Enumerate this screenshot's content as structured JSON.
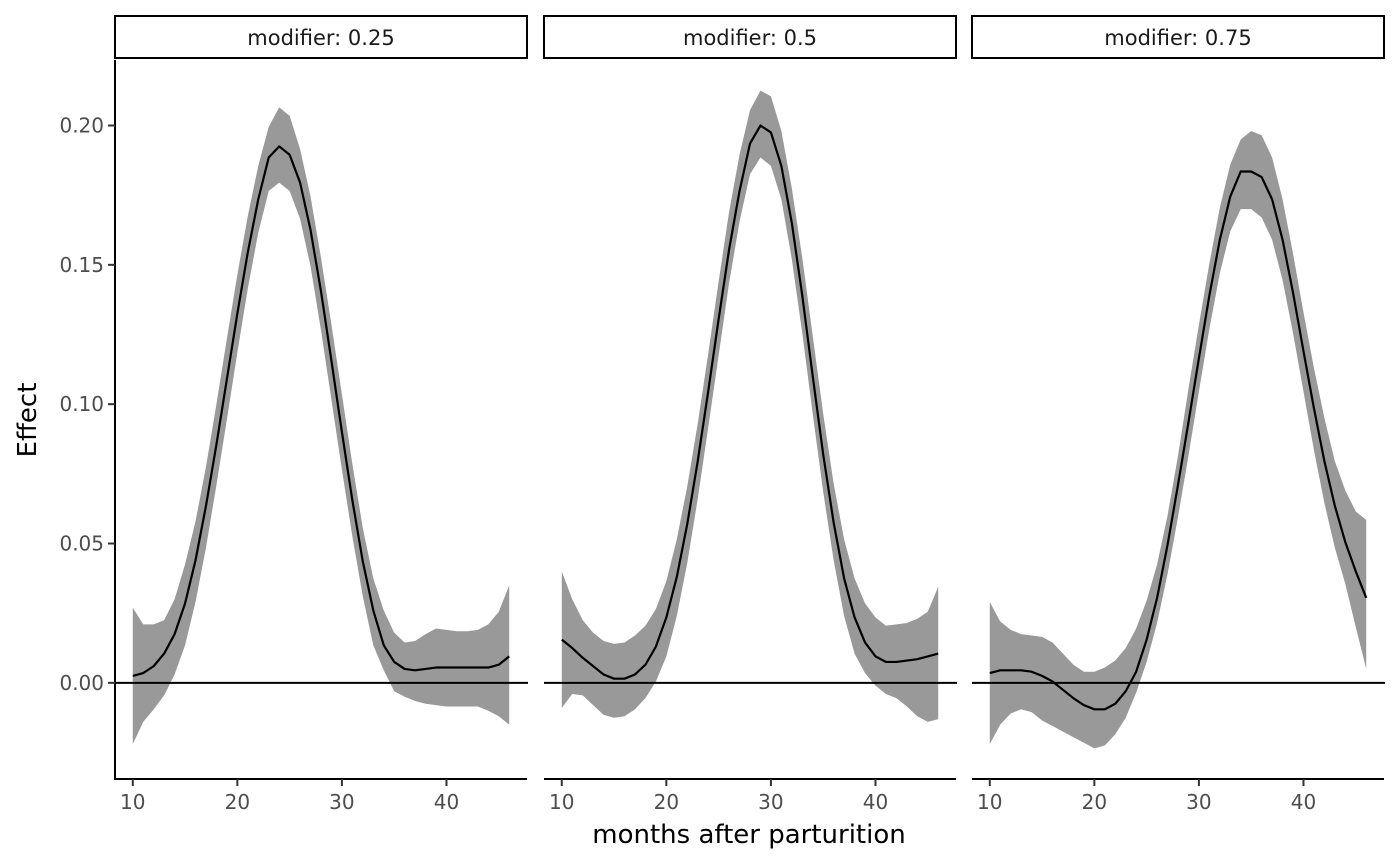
{
  "chart_data": {
    "type": "line",
    "xlabel": "months after parturition",
    "ylabel": "Effect",
    "xlim": [
      8.3,
      47.7
    ],
    "ylim": [
      -0.0345,
      0.2235
    ],
    "x_ticks": [
      10,
      20,
      30,
      40
    ],
    "y_ticks": [
      0.0,
      0.05,
      0.1,
      0.15,
      0.2
    ],
    "y_tick_labels": [
      "0.00",
      "0.05",
      "0.10",
      "0.15",
      "0.20"
    ],
    "reference_line_y": 0,
    "grid": false,
    "colors": {
      "line": "#000000",
      "ribbon": "#999999",
      "refline": "#000000"
    },
    "x": [
      10,
      11,
      12,
      13,
      14,
      15,
      16,
      17,
      18,
      19,
      20,
      21,
      22,
      23,
      24,
      25,
      26,
      27,
      28,
      29,
      30,
      31,
      32,
      33,
      34,
      35,
      36,
      37,
      38,
      39,
      40,
      41,
      42,
      43,
      44,
      45,
      46
    ],
    "panels": [
      {
        "label": "modifier: 0.25",
        "estimate": [
          0.0025,
          0.0035,
          0.006,
          0.0105,
          0.0175,
          0.0285,
          0.044,
          0.0635,
          0.0855,
          0.109,
          0.1325,
          0.1545,
          0.1735,
          0.1885,
          0.1925,
          0.1895,
          0.1795,
          0.1625,
          0.1405,
          0.1155,
          0.09,
          0.0655,
          0.0435,
          0.026,
          0.0135,
          0.0075,
          0.005,
          0.0045,
          0.005,
          0.0055,
          0.0055,
          0.0055,
          0.0055,
          0.0055,
          0.0055,
          0.0065,
          0.0095
        ],
        "lower": [
          -0.022,
          -0.014,
          -0.0095,
          -0.0045,
          0.003,
          0.0135,
          0.029,
          0.0485,
          0.071,
          0.0945,
          0.1185,
          0.1415,
          0.1615,
          0.1765,
          0.1795,
          0.1765,
          0.1665,
          0.1495,
          0.1265,
          0.1015,
          0.0765,
          0.0525,
          0.031,
          0.0135,
          0.0045,
          -0.003,
          -0.005,
          -0.0065,
          -0.0075,
          -0.008,
          -0.0085,
          -0.0085,
          -0.0085,
          -0.0085,
          -0.01,
          -0.012,
          -0.015
        ],
        "upper": [
          0.027,
          0.021,
          0.021,
          0.0225,
          0.03,
          0.0425,
          0.058,
          0.0775,
          0.1,
          0.1235,
          0.1465,
          0.1675,
          0.1855,
          0.1995,
          0.2065,
          0.2035,
          0.1915,
          0.1745,
          0.1525,
          0.1285,
          0.1035,
          0.0785,
          0.0555,
          0.0375,
          0.026,
          0.018,
          0.0145,
          0.015,
          0.0175,
          0.0195,
          0.019,
          0.0185,
          0.0185,
          0.019,
          0.021,
          0.0255,
          0.035
        ]
      },
      {
        "label": "modifier: 0.5",
        "estimate": [
          0.0155,
          0.0125,
          0.009,
          0.006,
          0.003,
          0.0015,
          0.0015,
          0.003,
          0.0065,
          0.013,
          0.0235,
          0.038,
          0.057,
          0.0795,
          0.1045,
          0.1305,
          0.1555,
          0.1765,
          0.1935,
          0.2,
          0.1975,
          0.1855,
          0.165,
          0.139,
          0.11,
          0.082,
          0.0575,
          0.0375,
          0.0235,
          0.0145,
          0.0095,
          0.0075,
          0.0075,
          0.008,
          0.0085,
          0.0095,
          0.0105
        ],
        "lower": [
          -0.009,
          -0.004,
          -0.0045,
          -0.008,
          -0.0115,
          -0.0125,
          -0.012,
          -0.0095,
          -0.0055,
          0.0005,
          0.0095,
          0.024,
          0.043,
          0.066,
          0.0915,
          0.1175,
          0.1435,
          0.1655,
          0.1825,
          0.1885,
          0.1855,
          0.1735,
          0.152,
          0.1255,
          0.0965,
          0.0685,
          0.044,
          0.024,
          0.0105,
          0.0035,
          -0.001,
          -0.004,
          -0.0055,
          -0.0085,
          -0.012,
          -0.014,
          -0.013
        ],
        "upper": [
          0.04,
          0.03,
          0.0225,
          0.018,
          0.015,
          0.014,
          0.0145,
          0.017,
          0.0205,
          0.0265,
          0.0365,
          0.0515,
          0.0705,
          0.093,
          0.118,
          0.144,
          0.169,
          0.1895,
          0.2055,
          0.2125,
          0.2105,
          0.198,
          0.1775,
          0.1525,
          0.1245,
          0.0965,
          0.0715,
          0.0515,
          0.0375,
          0.0285,
          0.0235,
          0.0205,
          0.021,
          0.0215,
          0.023,
          0.0255,
          0.0345
        ]
      },
      {
        "label": "modifier: 0.75",
        "estimate": [
          0.0035,
          0.0045,
          0.0045,
          0.0045,
          0.004,
          0.0025,
          0.0005,
          -0.0025,
          -0.0055,
          -0.008,
          -0.0095,
          -0.0095,
          -0.0075,
          -0.003,
          0.004,
          0.0155,
          0.0305,
          0.0495,
          0.071,
          0.0935,
          0.1165,
          0.139,
          0.159,
          0.1745,
          0.1835,
          0.1835,
          0.1815,
          0.1735,
          0.159,
          0.14,
          0.119,
          0.0985,
          0.0795,
          0.0635,
          0.0505,
          0.04,
          0.0305
        ],
        "lower": [
          -0.022,
          -0.015,
          -0.011,
          -0.0095,
          -0.0105,
          -0.0135,
          -0.0155,
          -0.0175,
          -0.0195,
          -0.0215,
          -0.0235,
          -0.0225,
          -0.0185,
          -0.0125,
          -0.0035,
          0.0075,
          0.0215,
          0.039,
          0.0595,
          0.0815,
          0.1045,
          0.127,
          0.147,
          0.162,
          0.17,
          0.17,
          0.167,
          0.159,
          0.1445,
          0.1255,
          0.1045,
          0.0835,
          0.0645,
          0.0485,
          0.0355,
          0.02,
          0.005
        ],
        "upper": [
          0.029,
          0.022,
          0.019,
          0.0175,
          0.017,
          0.0165,
          0.0145,
          0.0105,
          0.0065,
          0.004,
          0.004,
          0.0055,
          0.008,
          0.0125,
          0.0195,
          0.0295,
          0.0425,
          0.06,
          0.0815,
          0.1055,
          0.1285,
          0.1505,
          0.1705,
          0.186,
          0.195,
          0.198,
          0.1965,
          0.1885,
          0.1735,
          0.154,
          0.133,
          0.113,
          0.095,
          0.0795,
          0.069,
          0.0615,
          0.0585
        ]
      }
    ]
  }
}
